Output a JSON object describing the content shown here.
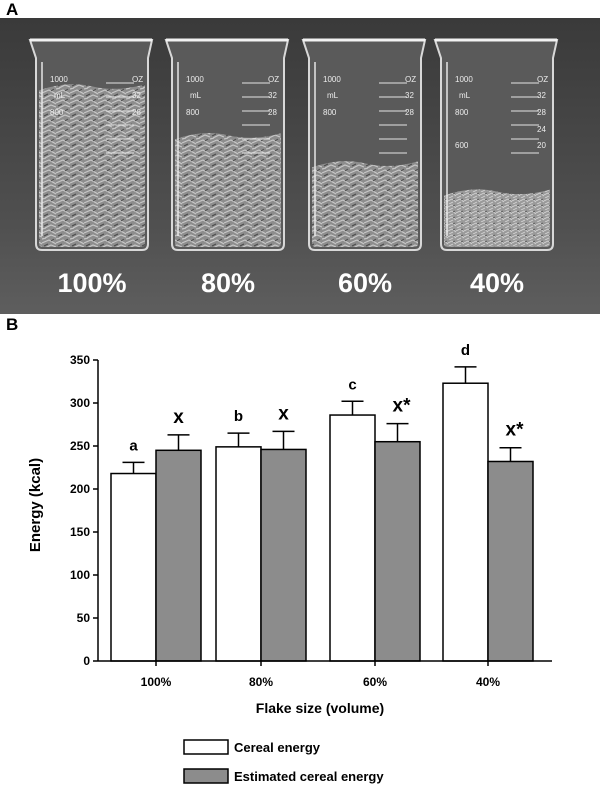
{
  "panels": {
    "a_label": "A",
    "b_label": "B"
  },
  "photo": {
    "beakers": [
      {
        "caption": "100%",
        "fill_fraction": 0.86
      },
      {
        "caption": "80%",
        "fill_fraction": 0.6
      },
      {
        "caption": "60%",
        "fill_fraction": 0.45
      },
      {
        "caption": "40%",
        "fill_fraction": 0.3
      }
    ],
    "beaker_marks": [
      "1000",
      "mL",
      "800",
      "600",
      "OZ",
      "32",
      "28",
      "24",
      "20"
    ]
  },
  "chart_data": {
    "type": "bar",
    "title": "",
    "xlabel": "Flake size (volume)",
    "ylabel": "Energy (kcal)",
    "ylim": [
      0,
      350
    ],
    "yticks": [
      0,
      50,
      100,
      150,
      200,
      250,
      300,
      350
    ],
    "categories": [
      "100%",
      "80%",
      "60%",
      "40%"
    ],
    "series": [
      {
        "name": "Cereal energy",
        "values": [
          218,
          249,
          286,
          323
        ],
        "errors": [
          13,
          16,
          16,
          19
        ],
        "color": "#ffffff",
        "annotations": [
          "a",
          "b",
          "c",
          "d"
        ]
      },
      {
        "name": "Estimated cereal energy",
        "values": [
          245,
          246,
          255,
          232
        ],
        "errors": [
          18,
          21,
          21,
          16
        ],
        "color": "#8c8c8c",
        "annotations": [
          "x",
          "x",
          "x*",
          "x*"
        ]
      }
    ],
    "legend_position": "bottom-center"
  }
}
